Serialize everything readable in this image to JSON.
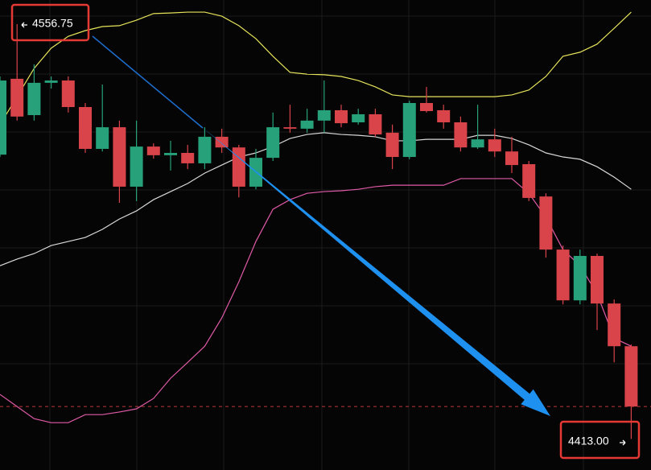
{
  "chart_data": {
    "type": "candlestick",
    "open": [
      4511.5,
      4537.8,
      4525.2,
      4536.4,
      4537.2,
      4528.0,
      4513.5,
      4521.0,
      4500.4,
      4514.3,
      4511.3,
      4512.1,
      4508.5,
      4517.7,
      4514.0,
      4500.4,
      4510.4,
      4521.0,
      4520.5,
      4523.3,
      4526.9,
      4522.7,
      4525.5,
      4519.1,
      4510.7,
      4529.4,
      4526.9,
      4522.7,
      4514.0,
      4516.8,
      4512.6,
      4508.2,
      4497.0,
      4478.6,
      4461.0,
      4476.4,
      4459.9,
      4445.1
    ],
    "high": [
      4538.6,
      4556.75,
      4542.8,
      4538.6,
      4538.6,
      4529.4,
      4535.8,
      4523.3,
      4523.3,
      4515.4,
      4516.3,
      4514.9,
      4521.0,
      4520.5,
      4514.9,
      4513.5,
      4526.1,
      4528.8,
      4527.4,
      4537.2,
      4528.8,
      4527.4,
      4527.4,
      4521.9,
      4530.2,
      4535.0,
      4528.8,
      4524.7,
      4528.8,
      4520.5,
      4517.7,
      4509.3,
      4498.1,
      4480.0,
      4478.6,
      4477.2,
      4461.3,
      4445.7
    ],
    "low": [
      4510.7,
      4523.3,
      4523.3,
      4534.4,
      4526.1,
      4512.1,
      4512.6,
      4494.8,
      4495.4,
      4510.1,
      4506.0,
      4506.5,
      4506.5,
      4512.1,
      4496.7,
      4499.5,
      4509.3,
      4519.1,
      4519.1,
      4519.1,
      4521.0,
      4521.9,
      4517.7,
      4506.5,
      4509.9,
      4526.1,
      4520.5,
      4512.6,
      4513.5,
      4510.7,
      4505.1,
      4495.4,
      4475.8,
      4459.6,
      4459.6,
      4450.7,
      4439.5,
      4413.0
    ],
    "close": [
      4537.2,
      4524.7,
      4536.4,
      4537.2,
      4528.0,
      4513.5,
      4521.0,
      4500.4,
      4514.3,
      4511.3,
      4512.1,
      4508.5,
      4517.7,
      4514.0,
      4500.4,
      4510.4,
      4521.0,
      4520.5,
      4523.3,
      4526.9,
      4522.4,
      4525.5,
      4518.5,
      4510.7,
      4529.4,
      4526.6,
      4522.7,
      4514.0,
      4516.8,
      4512.6,
      4507.9,
      4496.5,
      4478.6,
      4461.0,
      4476.4,
      4459.9,
      4445.1,
      4424.2
    ],
    "up_color": "#26a17a",
    "down_color": "#d9434a",
    "bands": [
      {
        "color": "#e6e35a",
        "values": [
          4521.9,
          4531.6,
          4541.4,
          4548.4,
          4552.5,
          4554.5,
          4555.9,
          4556.2,
          4558.1,
          4560.4,
          4560.6,
          4560.9,
          4560.9,
          4559.5,
          4556.2,
          4551.7,
          4545.6,
          4540.0,
          4539.4,
          4539.2,
          4538.6,
          4537.2,
          4535.0,
          4532.2,
          4531.6,
          4531.6,
          4531.6,
          4531.6,
          4531.6,
          4531.6,
          4532.2,
          4533.9,
          4538.6,
          4545.6,
          4547.0,
          4549.8,
          4555.3,
          4560.9
        ]
      },
      {
        "color": "#d8d8d8",
        "values": [
          4473.0,
          4475.3,
          4477.2,
          4480.0,
          4481.4,
          4482.8,
          4485.6,
          4489.2,
          4492.0,
          4495.9,
          4498.7,
          4501.5,
          4505.1,
          4507.9,
          4510.7,
          4512.1,
          4514.3,
          4517.1,
          4518.5,
          4519.1,
          4518.5,
          4518.2,
          4517.7,
          4516.3,
          4516.3,
          4516.8,
          4516.8,
          4516.8,
          4518.2,
          4518.2,
          4517.1,
          4514.9,
          4512.1,
          4510.7,
          4509.9,
          4507.3,
          4503.7,
          4499.5
        ]
      },
      {
        "color": "#e05aa8",
        "values": [
          4428.4,
          4424.2,
          4420.0,
          4418.6,
          4418.6,
          4421.4,
          4421.4,
          4422.3,
          4423.4,
          4427.0,
          4434.0,
          4439.5,
          4445.1,
          4454.9,
          4467.4,
          4481.4,
          4492.6,
          4495.9,
          4498.1,
          4498.7,
          4499.0,
          4499.5,
          4500.4,
          4500.9,
          4500.9,
          4500.9,
          4500.9,
          4503.2,
          4503.2,
          4503.2,
          4503.2,
          4498.1,
          4489.8,
          4478.6,
          4473.0,
          4463.3,
          4447.9,
          4445.1
        ]
      }
    ],
    "markers": [
      {
        "value": 4556.75,
        "label": "4556.75"
      },
      {
        "value": 4413,
        "label": "4413.00"
      }
    ],
    "ylim": [
      4402.2,
      4565.1
    ]
  }
}
